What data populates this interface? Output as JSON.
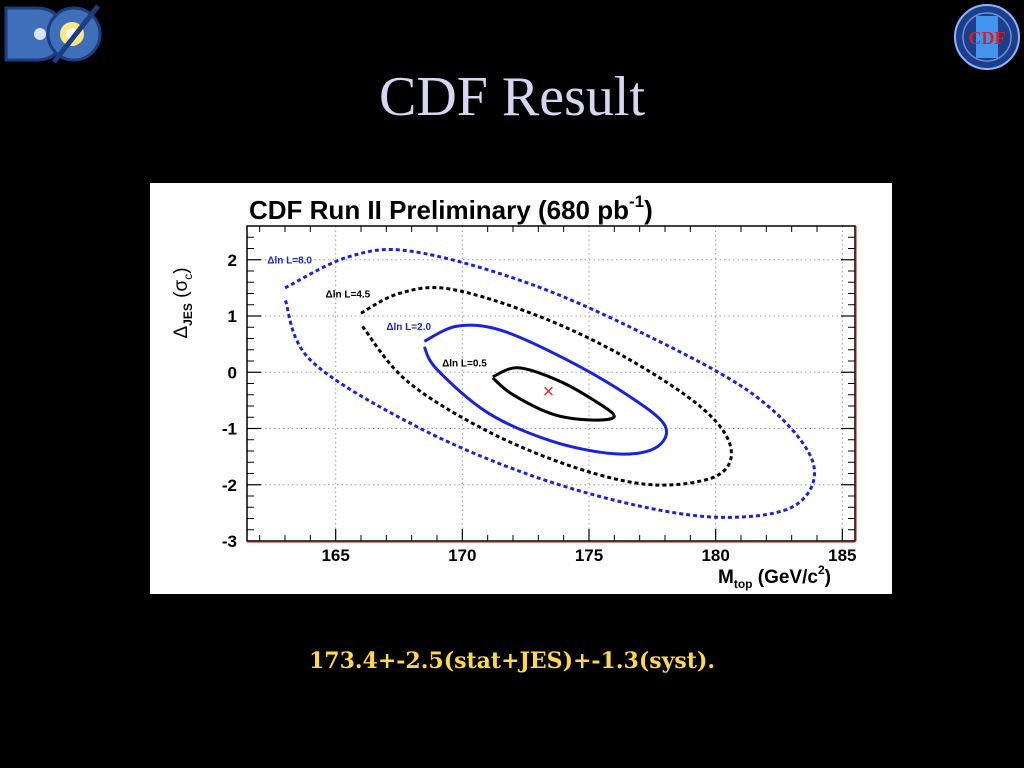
{
  "slide": {
    "title": "CDF Result",
    "result_text": "173.4+-2.5(stat+JES)+-1.3(syst).",
    "logos": {
      "left": {
        "icon": "d0-experiment-logo",
        "text": "DØ"
      },
      "right": {
        "icon": "cdf-experiment-logo",
        "text": "CDF II"
      }
    }
  },
  "chart_data": {
    "type": "contour",
    "title": "CDF Run II Preliminary (680 pb",
    "title_sup": "-1",
    "title_end": ")",
    "xlabel": "M",
    "xlabel_sub": "top",
    "xlabel_unit": " (GeV/c",
    "xlabel_sup": "2",
    "xlabel_end": ")",
    "ylabel": "Δ",
    "ylabel_sub": "JES",
    "ylabel_unit": " (σ",
    "ylabel_unit_sub": "c",
    "ylabel_end": ")",
    "xlim": [
      161.5,
      185.5
    ],
    "ylim": [
      -3,
      2.6
    ],
    "x_ticks": [
      165,
      170,
      175,
      180,
      185
    ],
    "y_ticks": [
      2,
      1,
      0,
      -1,
      -2,
      -3
    ],
    "grid": true,
    "best_fit": {
      "x": 173.4,
      "y": -0.33,
      "marker": "×",
      "color": "#e03030"
    },
    "contours": [
      {
        "label": "Δln L=0.5",
        "color": "#000000",
        "dashed": false,
        "points": [
          [
            171.2,
            -0.08
          ],
          [
            172.2,
            0.08
          ],
          [
            173.8,
            -0.15
          ],
          [
            175.2,
            -0.5
          ],
          [
            176.0,
            -0.78
          ],
          [
            175.2,
            -0.85
          ],
          [
            173.6,
            -0.75
          ],
          [
            172.0,
            -0.4
          ],
          [
            171.2,
            -0.1
          ]
        ]
      },
      {
        "label": "Δln L=2.0",
        "color": "#1a24d6",
        "dashed": false,
        "points": [
          [
            168.5,
            0.55
          ],
          [
            169.8,
            0.82
          ],
          [
            171.5,
            0.75
          ],
          [
            174.0,
            0.25
          ],
          [
            176.5,
            -0.4
          ],
          [
            178.0,
            -0.95
          ],
          [
            177.6,
            -1.35
          ],
          [
            176.0,
            -1.45
          ],
          [
            173.5,
            -1.22
          ],
          [
            171.0,
            -0.72
          ],
          [
            169.0,
            0.05
          ],
          [
            168.5,
            0.45
          ]
        ]
      },
      {
        "label": "Δln L=4.5",
        "color": "#000000",
        "dashed": true,
        "points": [
          [
            166.0,
            1.05
          ],
          [
            167.5,
            1.4
          ],
          [
            169.5,
            1.48
          ],
          [
            173.0,
            1.0
          ],
          [
            176.5,
            0.25
          ],
          [
            179.5,
            -0.65
          ],
          [
            180.6,
            -1.35
          ],
          [
            180.0,
            -1.85
          ],
          [
            177.5,
            -2.0
          ],
          [
            174.5,
            -1.7
          ],
          [
            171.0,
            -1.05
          ],
          [
            167.8,
            -0.15
          ],
          [
            166.0,
            0.85
          ]
        ]
      },
      {
        "label": "Δln L=8.0",
        "color": "#1a24d6",
        "dashed": true,
        "points": [
          [
            163.0,
            1.5
          ],
          [
            165.5,
            2.05
          ],
          [
            168.0,
            2.15
          ],
          [
            172.5,
            1.6
          ],
          [
            177.0,
            0.72
          ],
          [
            181.5,
            -0.4
          ],
          [
            183.8,
            -1.55
          ],
          [
            183.2,
            -2.35
          ],
          [
            180.5,
            -2.58
          ],
          [
            177.0,
            -2.38
          ],
          [
            172.5,
            -1.8
          ],
          [
            168.0,
            -0.92
          ],
          [
            164.0,
            0.22
          ],
          [
            163.0,
            1.3
          ]
        ]
      }
    ],
    "label_positions": [
      {
        "label": "Δln L=8.0",
        "x": 162.3,
        "y": 1.93,
        "color": "#1a24d6"
      },
      {
        "label": "Δln L=4.5",
        "x": 164.6,
        "y": 1.33,
        "color": "#000000"
      },
      {
        "label": "Δln L=2.0",
        "x": 167.0,
        "y": 0.75,
        "color": "#1a24d6"
      },
      {
        "label": "Δln L=0.5",
        "x": 169.2,
        "y": 0.1,
        "color": "#000000"
      }
    ]
  }
}
